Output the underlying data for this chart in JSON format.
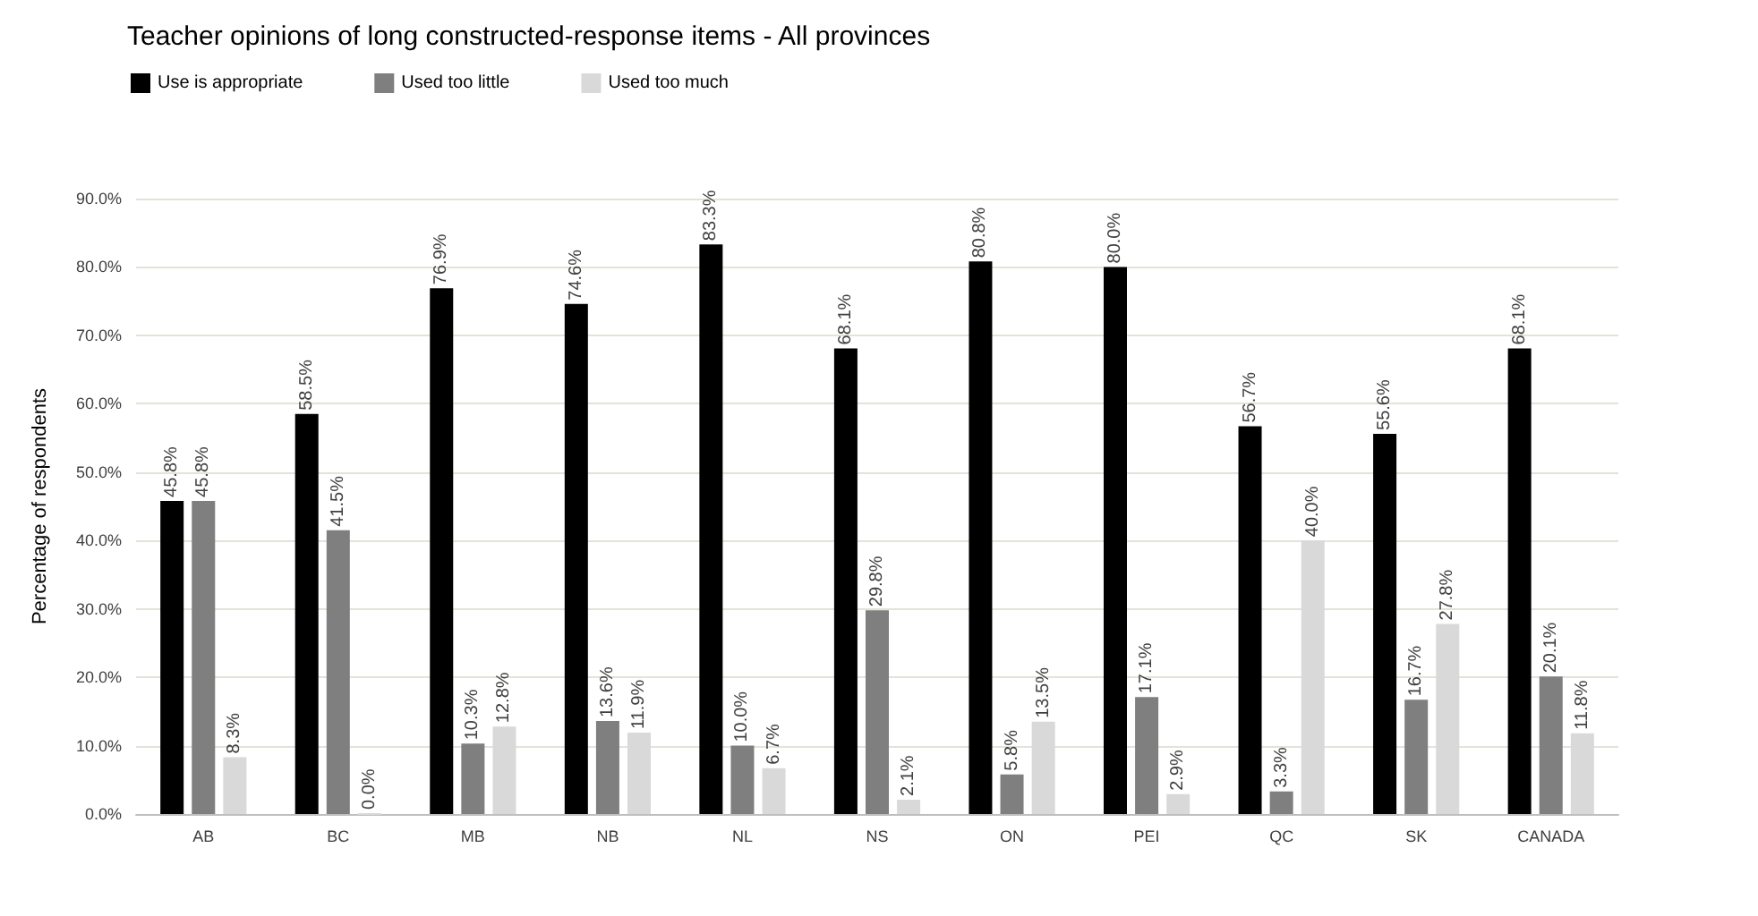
{
  "chart_data": {
    "type": "bar",
    "title": "Teacher opinions of long constructed-response items - All provinces",
    "ylabel": "Percentage of respondents",
    "categories": [
      "AB",
      "BC",
      "MB",
      "NB",
      "NL",
      "NS",
      "ON",
      "PEI",
      "QC",
      "SK",
      "CANADA"
    ],
    "series": [
      {
        "name": "Use is appropriate",
        "color": "#000000",
        "values": [
          45.8,
          58.5,
          76.9,
          74.6,
          83.3,
          68.1,
          80.8,
          80.0,
          56.7,
          55.6,
          68.1
        ],
        "value_labels": [
          "45.8%",
          "58.5%",
          "76.9%",
          "74.6%",
          "83.3%",
          "68.1%",
          "80.8%",
          "80.0%",
          "56.7%",
          "55.6%",
          "68.1%"
        ]
      },
      {
        "name": "Used too little",
        "color": "#7f7f7f",
        "values": [
          45.8,
          41.5,
          10.3,
          13.6,
          10.0,
          29.8,
          5.8,
          17.1,
          3.3,
          16.7,
          20.1
        ],
        "value_labels": [
          "45.8%",
          "41.5%",
          "10.3%",
          "13.6%",
          "10.0%",
          "29.8%",
          "5.8%",
          "17.1%",
          "3.3%",
          "16.7%",
          "20.1%"
        ]
      },
      {
        "name": "Used too much",
        "color": "#d9d9d9",
        "values": [
          8.3,
          0.0,
          12.8,
          11.9,
          6.7,
          2.1,
          13.5,
          2.9,
          40.0,
          27.8,
          11.8
        ],
        "value_labels": [
          "8.3%",
          "0.0%",
          "12.8%",
          "11.9%",
          "6.7%",
          "2.1%",
          "13.5%",
          "2.9%",
          "40.0%",
          "27.8%",
          "11.8%"
        ]
      }
    ],
    "ylim": [
      0,
      90
    ],
    "yticks": [
      {
        "value": 0,
        "label": "0.0%"
      },
      {
        "value": 10,
        "label": "10.0%"
      },
      {
        "value": 20,
        "label": "20.0%"
      },
      {
        "value": 30,
        "label": "30.0%"
      },
      {
        "value": 40,
        "label": "40.0%"
      },
      {
        "value": 50,
        "label": "50.0%"
      },
      {
        "value": 60,
        "label": "60.0%"
      },
      {
        "value": 70,
        "label": "70.0%"
      },
      {
        "value": 80,
        "label": "80.0%"
      },
      {
        "value": 90,
        "label": "90.0%"
      }
    ],
    "grid": "y",
    "legend": "top left"
  }
}
